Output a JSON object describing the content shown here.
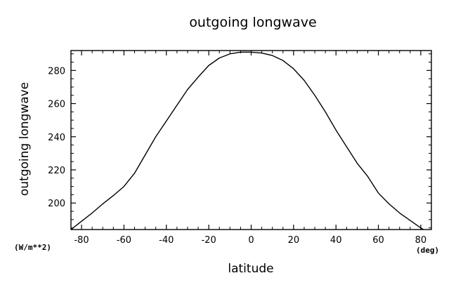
{
  "chart_data": {
    "type": "line",
    "title": "outgoing longwave",
    "xlabel": "latitude",
    "ylabel": "outgoing longwave",
    "x_unit": "(deg)",
    "y_unit": "(W/m**2)",
    "xlim": [
      -85,
      85
    ],
    "ylim": [
      184,
      292
    ],
    "x_ticks": [
      -80,
      -60,
      -40,
      -20,
      0,
      20,
      40,
      60,
      80
    ],
    "y_ticks": [
      200,
      220,
      240,
      260,
      280
    ],
    "x_minor_step": 5,
    "y_minor_step": 5,
    "grid": false,
    "series": [
      {
        "x": [
          -85,
          -80,
          -75,
          -70,
          -65,
          -60,
          -55,
          -50,
          -45,
          -40,
          -35,
          -30,
          -25,
          -20,
          -15,
          -10,
          -5,
          0,
          5,
          10,
          15,
          20,
          25,
          30,
          35,
          40,
          45,
          50,
          55,
          60,
          65,
          70,
          75,
          80,
          85
        ],
        "y": [
          184,
          189,
          194,
          199.5,
          204.5,
          210,
          218,
          229,
          240,
          249.5,
          259,
          268.5,
          276,
          283,
          287.5,
          290,
          291,
          291,
          290.5,
          289,
          286,
          281,
          274,
          265,
          255,
          244,
          234,
          224,
          216,
          206,
          199.5,
          194,
          189.5,
          185,
          181
        ]
      }
    ]
  }
}
